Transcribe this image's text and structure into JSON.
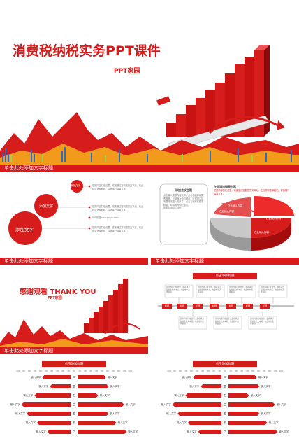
{
  "colors": {
    "accent": "#d71c1c",
    "dark_red": "#a50d0d",
    "orange": "#f29a1b",
    "blue": "#2b6ec6"
  },
  "cover": {
    "title": "消费税纳税实务PPT课件",
    "subtitle": "PPT家园",
    "footer_label": "单击此处添加文字标题"
  },
  "slide2": {
    "circles": [
      "添加文字",
      "添加文字",
      "添加文字"
    ],
    "items": [
      "您的内容打在这里，或者通过复制您的文本后，在此框中选择粘贴，并选择只保留文字。",
      "您的内容打在这里，或者通过复制您的文本后，在此框中选择粘贴，并选择只保留文字。",
      "PPT家园www.pptjia.com",
      "您的内容打在这里，或者通过复制您的文本后，在此框中选择粘贴，并选择只保留文字。"
    ],
    "footer_label": "单击此处添加文字标题"
  },
  "slide3": {
    "box_title": "添加会议主题",
    "box_text": "点击输入观察内容文本，点击右键修改图表数据，可替换为你的观点。可根据实际需要修改图片的尺寸，点击右键修改图表数据，可替换为你的观点。www.pptjia.com",
    "chart_title": "在此添加图表内容",
    "chart_desc": "您的内容打在这里，或者通过复制您的文本后，在此框中选择粘贴，并选择只保留文字。",
    "slices": [
      "在此输入内容",
      "在此输入内容",
      "在此输入内容",
      "在此输入内容"
    ],
    "footer_label": "单击此处添加文字标题"
  },
  "slide4": {
    "title": "感谢观看 THANK YOU",
    "subtitle": "PPT家园",
    "footer_label": "单击此处添加文字标题"
  },
  "slide5": {
    "header": "点击添加标题",
    "nodes": [
      "标题",
      "标题",
      "标题",
      "标题",
      "标题",
      "标题",
      "标题"
    ],
    "note": "您的内容打在这里，或者通过复制您的文本后，在此框中选择粘贴"
  },
  "slide6": {
    "header": "点击添加标题",
    "scale": [
      "100",
      "90",
      "80",
      "70",
      "60",
      "50",
      "40",
      "30",
      "20",
      "10",
      "0",
      "10",
      "20",
      "30",
      "40",
      "50",
      "60",
      "70",
      "80",
      "90",
      "100"
    ],
    "letters": [
      "A",
      "B",
      "C",
      "D",
      "E",
      "F",
      "G"
    ],
    "left_label": "输入文字",
    "right_label": "输入文字",
    "left_values": [
      55,
      40,
      70,
      95,
      85,
      65,
      45
    ],
    "right_values": [
      55,
      60,
      40,
      90,
      60,
      75,
      95
    ]
  },
  "slide7": {
    "header": "点击添加标题",
    "scale": [
      "100",
      "90",
      "80",
      "70",
      "60",
      "50",
      "40",
      "30",
      "20",
      "10",
      "0",
      "10",
      "20",
      "30",
      "40",
      "50",
      "60",
      "70",
      "80",
      "90",
      "100"
    ],
    "letters": [
      "A",
      "B",
      "C",
      "D",
      "E",
      "F",
      "G"
    ],
    "left_label": "输入文字",
    "right_label": "输入文字",
    "left_values": [
      55,
      40,
      70,
      95,
      85,
      65,
      45
    ],
    "right_values": [
      55,
      60,
      40,
      90,
      60,
      75,
      95
    ]
  }
}
